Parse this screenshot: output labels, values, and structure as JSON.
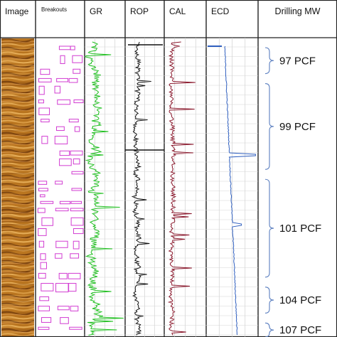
{
  "chart_data": {
    "type": "well-log",
    "tracks": [
      {
        "id": "image",
        "title": "Image"
      },
      {
        "id": "breakouts",
        "title": "Breakouts"
      },
      {
        "id": "gr",
        "title": "GR",
        "color": "#1fbf1f"
      },
      {
        "id": "rop",
        "title": "ROP",
        "color": "#111111"
      },
      {
        "id": "cal",
        "title": "CAL",
        "color": "#8b1a2e"
      },
      {
        "id": "ecd",
        "title": "ECD",
        "color": "#2f5fbf"
      },
      {
        "id": "mw",
        "title": "Drilling MW",
        "color": "#5b7fc0"
      }
    ],
    "mud_weight_zones": [
      {
        "label": "97 PCF",
        "start": 0.0,
        "end": 0.12
      },
      {
        "label": "99 PCF",
        "start": 0.12,
        "end": 0.44
      },
      {
        "label": "101 PCF",
        "start": 0.44,
        "end": 0.8
      },
      {
        "label": "104 PCF",
        "start": 0.8,
        "end": 0.92
      },
      {
        "label": "107 PCF",
        "start": 0.92,
        "end": 1.0
      }
    ],
    "grid": true,
    "breakout_color": "#d23dd2",
    "image_colors": {
      "dark": "#8a4e12",
      "mid": "#c07a22",
      "light": "#e6ae5a"
    }
  }
}
